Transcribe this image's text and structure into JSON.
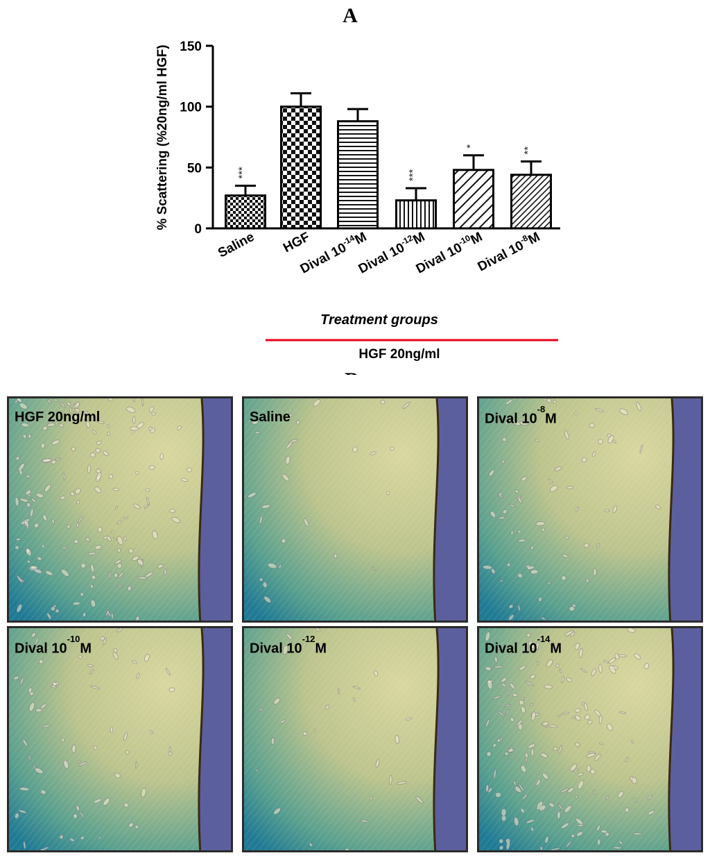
{
  "panel_a_letter": "A",
  "panel_b_letter": "B",
  "chart_data": {
    "type": "bar",
    "ylabel": "% Scattering (%20ng/ml HGF)",
    "xlabel": "Treatment groups",
    "ylim": [
      0,
      150
    ],
    "yticks": [
      "0",
      "50",
      "100",
      "150"
    ],
    "categories": [
      {
        "base": "Saline",
        "exp": "",
        "unit": ""
      },
      {
        "base": "HGF",
        "exp": "",
        "unit": ""
      },
      {
        "base": "Dival 10",
        "exp": "-14",
        "unit": "M"
      },
      {
        "base": "Dival 10",
        "exp": "-12",
        "unit": "M"
      },
      {
        "base": "Dival 10",
        "exp": "-10",
        "unit": "M"
      },
      {
        "base": "Dival 10",
        "exp": "-8",
        "unit": "M"
      }
    ],
    "values": [
      27,
      100,
      88,
      23,
      48,
      44
    ],
    "errors": [
      8,
      11,
      10,
      10,
      12,
      11
    ],
    "patterns": [
      "small-checker",
      "big-checker",
      "horizontal",
      "vertical",
      "diag-wide",
      "diag-fine"
    ],
    "significance": [
      "***",
      "",
      "",
      "***",
      "*",
      "**"
    ],
    "bracket_label": "HGF 20ng/ml",
    "bracket_color": "#e8001c"
  },
  "micrographs": [
    {
      "label": "HGF 20ng/ml",
      "exp": "",
      "unit": "",
      "density": "high"
    },
    {
      "label": "Saline",
      "exp": "",
      "unit": "",
      "density": "low"
    },
    {
      "label": "Dival 10",
      "exp": "-8",
      "unit": "M",
      "density": "medium"
    },
    {
      "label": "Dival 10",
      "exp": "-10",
      "unit": "M",
      "density": "medium"
    },
    {
      "label": "Dival 10",
      "exp": "-12",
      "unit": "M",
      "density": "low"
    },
    {
      "label": "Dival 10",
      "exp": "-14",
      "unit": "M",
      "density": "high"
    }
  ]
}
